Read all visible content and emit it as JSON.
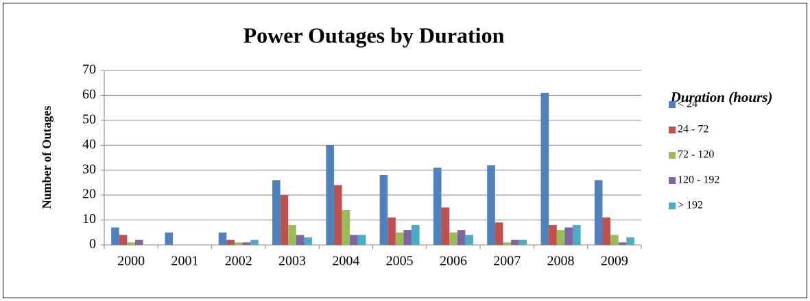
{
  "chart_data": {
    "type": "bar",
    "title": "Power Outages by Duration",
    "y_label": "Number of Outages",
    "legend_title": "Duration (hours)",
    "categories": [
      "2000",
      "2001",
      "2002",
      "2003",
      "2004",
      "2005",
      "2006",
      "2007",
      "2008",
      "2009"
    ],
    "series": [
      {
        "name": "< 24",
        "color": "#4f81bd",
        "values": [
          7,
          5,
          5,
          26,
          40,
          28,
          31,
          32,
          61,
          26
        ]
      },
      {
        "name": "24 - 72",
        "color": "#c0504d",
        "values": [
          4,
          0,
          2,
          20,
          24,
          11,
          15,
          9,
          8,
          11
        ]
      },
      {
        "name": "72 - 120",
        "color": "#9bbb59",
        "values": [
          1,
          0,
          1,
          8,
          14,
          5,
          5,
          1,
          6,
          4
        ]
      },
      {
        "name": "120 - 192",
        "color": "#8064a2",
        "values": [
          2,
          0,
          1,
          4,
          4,
          6,
          6,
          2,
          7,
          1
        ]
      },
      {
        "name": "> 192",
        "color": "#4bacc6",
        "values": [
          0,
          0,
          2,
          3,
          4,
          8,
          4,
          2,
          8,
          3
        ]
      }
    ],
    "ylim": [
      0,
      70
    ],
    "yticks": [
      0,
      10,
      20,
      30,
      40,
      50,
      60,
      70
    ],
    "grid": true,
    "legend": "right"
  }
}
